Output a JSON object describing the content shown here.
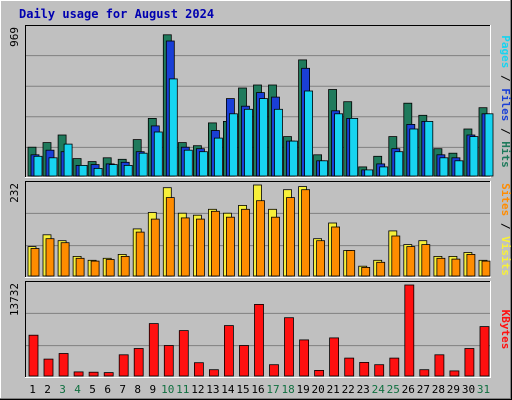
{
  "title": "Daily usage for August 2024",
  "colors": {
    "background": "#c0c0c0",
    "panel": "#c0c0c0",
    "grid": "#808080",
    "hits": "#1f7a5c",
    "files": "#1a3fd6",
    "pages": "#17d4f0",
    "visits": "#f7f03a",
    "sites": "#ff8c00",
    "kbytes": "#ff1010",
    "weekday_label": "#000000",
    "weekend_label": "#107040"
  },
  "chart_data": [
    {
      "type": "bar",
      "x": [
        "1",
        "2",
        "3",
        "4",
        "5",
        "6",
        "7",
        "8",
        "9",
        "10",
        "11",
        "12",
        "13",
        "14",
        "15",
        "16",
        "17",
        "18",
        "19",
        "20",
        "21",
        "22",
        "23",
        "24",
        "25",
        "26",
        "27",
        "28",
        "29",
        "30",
        "31"
      ],
      "weekend_days": [
        "3",
        "4",
        "10",
        "11",
        "17",
        "18",
        "24",
        "25",
        "31"
      ],
      "ymax_label": "969",
      "ylim": [
        0,
        969
      ],
      "right_labels": [
        "Pages",
        "Files",
        "Hits"
      ],
      "series": [
        {
          "name": "Hits",
          "values": [
            190,
            220,
            270,
            115,
            95,
            120,
            110,
            240,
            380,
            931,
            220,
            200,
            350,
            360,
            580,
            600,
            600,
            260,
            765,
            140,
            570,
            490,
            60,
            130,
            260,
            480,
            400,
            180,
            150,
            310,
            450
          ]
        },
        {
          "name": "Files",
          "values": [
            140,
            170,
            160,
            70,
            75,
            80,
            90,
            160,
            330,
            890,
            190,
            180,
            300,
            510,
            460,
            550,
            520,
            230,
            710,
            100,
            430,
            380,
            40,
            80,
            180,
            340,
            360,
            140,
            120,
            270,
            410
          ]
        },
        {
          "name": "Pages",
          "values": [
            130,
            120,
            210,
            70,
            50,
            75,
            70,
            150,
            290,
            640,
            170,
            160,
            250,
            410,
            440,
            510,
            440,
            230,
            560,
            100,
            410,
            380,
            40,
            60,
            160,
            310,
            360,
            120,
            100,
            260,
            410
          ]
        }
      ]
    },
    {
      "type": "bar",
      "x": [
        "1",
        "2",
        "3",
        "4",
        "5",
        "6",
        "7",
        "8",
        "9",
        "10",
        "11",
        "12",
        "13",
        "14",
        "15",
        "16",
        "17",
        "18",
        "19",
        "20",
        "21",
        "22",
        "23",
        "24",
        "25",
        "26",
        "27",
        "28",
        "29",
        "30",
        "31"
      ],
      "ymax_label": "232",
      "ylim": [
        0,
        232
      ],
      "right_labels": [
        "Sites",
        "Visits"
      ],
      "series": [
        {
          "name": "Visits",
          "values": [
            75,
            105,
            90,
            50,
            40,
            45,
            55,
            120,
            162,
            225,
            160,
            155,
            170,
            160,
            180,
            232,
            170,
            220,
            228,
            95,
            135,
            65,
            25,
            40,
            115,
            80,
            90,
            50,
            50,
            60,
            40
          ]
        },
        {
          "name": "Sites",
          "values": [
            70,
            95,
            85,
            45,
            38,
            42,
            50,
            112,
            145,
            200,
            148,
            145,
            165,
            150,
            170,
            192,
            150,
            200,
            220,
            90,
            125,
            65,
            22,
            35,
            102,
            75,
            80,
            45,
            43,
            55,
            38
          ]
        }
      ]
    },
    {
      "type": "bar",
      "x": [
        "1",
        "2",
        "3",
        "4",
        "5",
        "6",
        "7",
        "8",
        "9",
        "10",
        "11",
        "12",
        "13",
        "14",
        "15",
        "16",
        "17",
        "18",
        "19",
        "20",
        "21",
        "22",
        "23",
        "24",
        "25",
        "26",
        "27",
        "28",
        "29",
        "30",
        "31"
      ],
      "ymax_label": "13732",
      "ylim": [
        0,
        13732
      ],
      "right_labels": [
        "KBytes"
      ],
      "series": [
        {
          "name": "KBytes",
          "values": [
            6150,
            2550,
            3400,
            620,
            580,
            510,
            3200,
            4150,
            7900,
            4600,
            6850,
            2000,
            950,
            7600,
            4600,
            10800,
            1700,
            8800,
            5450,
            850,
            5750,
            2700,
            2050,
            1700,
            2700,
            13732,
            950,
            3200,
            770,
            4150,
            7450
          ]
        }
      ]
    }
  ]
}
